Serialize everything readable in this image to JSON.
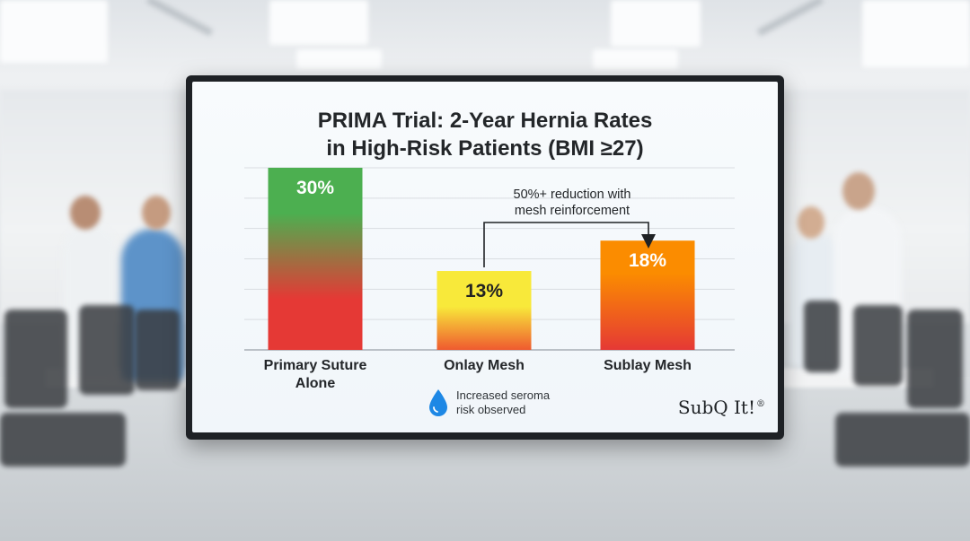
{
  "chart_data": {
    "type": "bar",
    "title_lines": [
      "PRIMA Trial: 2-Year Hernia Rates",
      "in High-Risk Patients (BMI ≥27)"
    ],
    "categories": [
      "Primary Suture Alone",
      "Onlay Mesh",
      "Sublay Mesh"
    ],
    "category_label_lines": [
      [
        "Primary Suture",
        "Alone"
      ],
      [
        "Onlay Mesh"
      ],
      [
        "Sublay Mesh"
      ]
    ],
    "values": [
      30,
      13,
      18
    ],
    "value_labels": [
      "30%",
      "13%",
      "18%"
    ],
    "unit": "%",
    "ylim": [
      0,
      30
    ],
    "grid": true,
    "xlabel": "",
    "ylabel": "",
    "annotation": {
      "lines": [
        "50%+ reduction with",
        "mesh reinforcement"
      ],
      "from_category": "Onlay Mesh",
      "to_category": "Sublay Mesh"
    },
    "footnote": {
      "icon": "water-drop-icon",
      "lines": [
        "Increased seroma",
        "risk observed"
      ]
    }
  },
  "brand": {
    "name": "SubQ It!",
    "mark": "®"
  },
  "colors": {
    "bar_1_top": "#4caf50",
    "bar_1_bottom": "#e53935",
    "bar_2_top": "#f8e93a",
    "bar_2_bottom": "#ef5a2f",
    "bar_3_top": "#fb8c00",
    "bar_3_bottom": "#e53935",
    "value_text_light": "#ffffff",
    "value_text_dark": "#222222",
    "drop_blue": "#1e88e5"
  }
}
